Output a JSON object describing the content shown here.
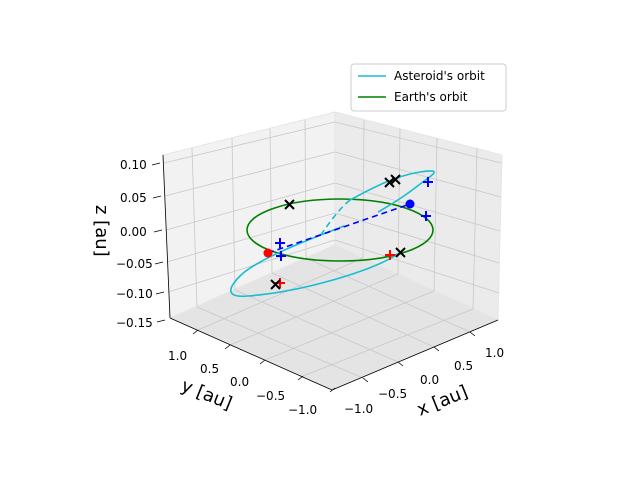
{
  "chart_data": {
    "type": "3d-line",
    "xlabel": "x [au]",
    "ylabel": "y [au]",
    "zlabel": "z [au]",
    "x_ticks": [
      "−1.0",
      "−0.5",
      "0.0",
      "0.5",
      "1.0"
    ],
    "y_ticks": [
      "1.0",
      "0.5",
      "0.0",
      "−0.5",
      "−1.0"
    ],
    "z_ticks": [
      "0.10",
      "0.05",
      "0.00",
      "−0.05",
      "−0.10",
      "−0.15"
    ],
    "zlim": [
      -0.15,
      0.11
    ],
    "grid": true,
    "legend_position": "top-right",
    "series": [
      {
        "name": "Asteroid's orbit",
        "color": "#17becf",
        "style": "solid"
      },
      {
        "name": "Earth's orbit",
        "color": "#008000",
        "style": "solid"
      }
    ],
    "markers": {
      "red_dot_color": "#ff0000",
      "blue_dot_color": "#0000ff",
      "node_line_color": "#0000ff"
    }
  }
}
